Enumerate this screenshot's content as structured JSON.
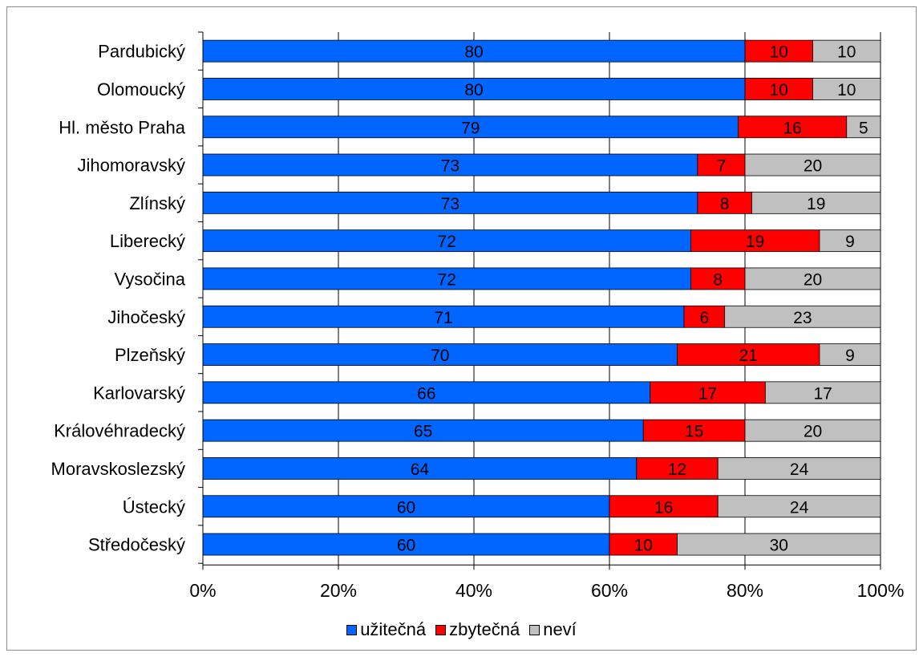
{
  "chart_data": {
    "type": "bar",
    "orientation": "horizontal",
    "stacked": "percent",
    "categories": [
      "Pardubický",
      "Olomoucký",
      "Hl. město Praha",
      "Jihomoravský",
      "Zlínský",
      "Liberecký",
      "Vysočina",
      "Jihočeský",
      "Plzeňský",
      "Karlovarský",
      "Královéhradecký",
      "Moravskoslezský",
      "Ústecký",
      "Středočeský"
    ],
    "series": [
      {
        "name": "užitečná",
        "color": "#0066ff",
        "values": [
          80,
          80,
          79,
          73,
          73,
          72,
          72,
          71,
          70,
          66,
          65,
          64,
          60,
          60
        ]
      },
      {
        "name": "zbytečná",
        "color": "#ff0000",
        "values": [
          10,
          10,
          16,
          7,
          8,
          19,
          8,
          6,
          21,
          17,
          15,
          12,
          16,
          10
        ]
      },
      {
        "name": "neví",
        "color": "#c0c0c0",
        "values": [
          10,
          10,
          5,
          20,
          19,
          9,
          20,
          23,
          9,
          17,
          20,
          24,
          24,
          30
        ]
      }
    ],
    "x_ticks": [
      "0%",
      "20%",
      "40%",
      "60%",
      "80%",
      "100%"
    ],
    "xlim": [
      0,
      100
    ],
    "grid": "vertical",
    "legend": "bottom",
    "title": "",
    "xlabel": "",
    "ylabel": ""
  }
}
